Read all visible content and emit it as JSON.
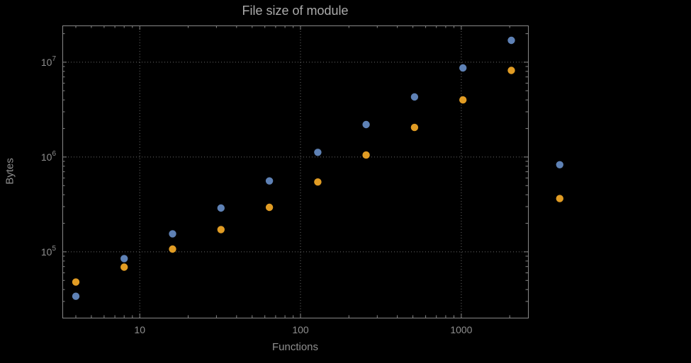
{
  "chart_data": {
    "type": "scatter",
    "title": "File size of module",
    "xlabel": "Functions",
    "ylabel": "Bytes",
    "x_scale": "log",
    "y_scale": "log",
    "xlim": [
      3.3,
      2600
    ],
    "ylim": [
      20200,
      24400000
    ],
    "grid": "dotted-major",
    "legend": "none",
    "x_ticks": [
      {
        "value": 10,
        "label": "10"
      },
      {
        "value": 100,
        "label": "100"
      },
      {
        "value": 1000,
        "label": "1000"
      }
    ],
    "y_ticks": [
      {
        "value": 100000,
        "base": "10",
        "exp": "5"
      },
      {
        "value": 1000000,
        "base": "10",
        "exp": "6"
      },
      {
        "value": 10000000,
        "base": "10",
        "exp": "7"
      }
    ],
    "series": [
      {
        "name": "blue-series",
        "color": "#5e81b5",
        "x": [
          4,
          8,
          16,
          32,
          64,
          128,
          256,
          512,
          1024,
          2048,
          4096
        ],
        "y": [
          34000,
          85000,
          155000,
          290000,
          560000,
          1120000,
          2200000,
          4300000,
          8700000,
          17000000,
          830000
        ]
      },
      {
        "name": "orange-series",
        "color": "#e19c24",
        "x": [
          4,
          8,
          16,
          32,
          64,
          128,
          256,
          512,
          1024,
          2048,
          4096
        ],
        "y": [
          48000,
          69000,
          107000,
          172000,
          295000,
          545000,
          1050000,
          2050000,
          4000000,
          8200000,
          365000
        ]
      }
    ]
  },
  "theme": {
    "background": "#000000",
    "frame": "#888888",
    "grid": "#6a6a6a",
    "text": "#8f8f8f",
    "title_text": "#ababab"
  }
}
